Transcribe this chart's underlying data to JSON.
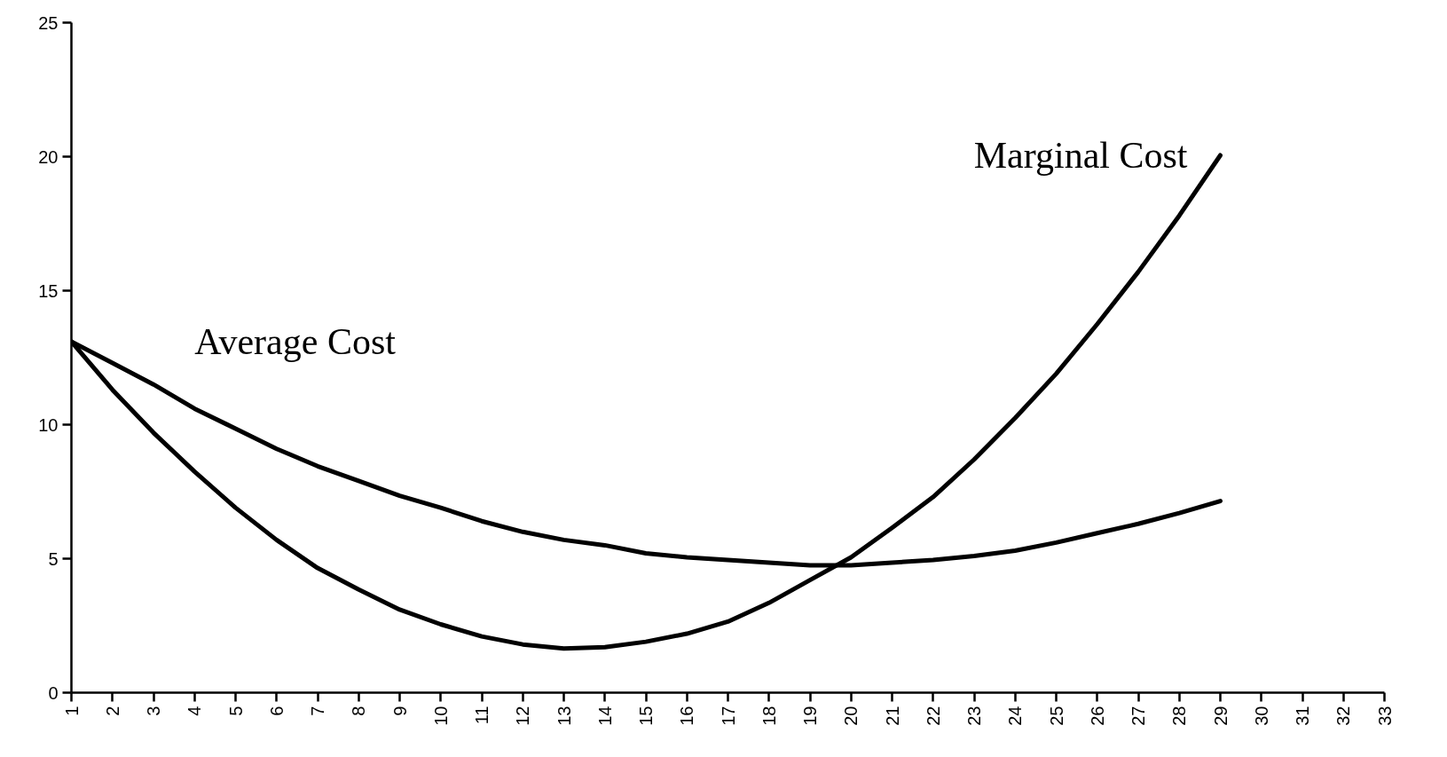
{
  "chart_data": {
    "type": "line",
    "x": [
      1,
      2,
      3,
      4,
      5,
      6,
      7,
      8,
      9,
      10,
      11,
      12,
      13,
      14,
      15,
      16,
      17,
      18,
      19,
      20,
      21,
      22,
      23,
      24,
      25,
      26,
      27,
      28,
      29
    ],
    "series": [
      {
        "name": "Average Cost",
        "color": "#000000",
        "values": [
          13.1,
          12.3,
          11.5,
          10.6,
          9.85,
          9.1,
          8.45,
          7.9,
          7.35,
          6.9,
          6.4,
          6.0,
          5.7,
          5.5,
          5.2,
          5.05,
          4.95,
          4.85,
          4.75,
          4.75,
          4.85,
          4.95,
          5.1,
          5.3,
          5.6,
          5.95,
          6.3,
          6.7,
          7.15
        ]
      },
      {
        "name": "Marginal Cost",
        "color": "#000000",
        "values": [
          13.1,
          11.3,
          9.7,
          8.25,
          6.9,
          5.7,
          4.65,
          3.85,
          3.1,
          2.55,
          2.1,
          1.8,
          1.65,
          1.7,
          1.9,
          2.2,
          2.65,
          3.35,
          4.2,
          5.05,
          6.15,
          7.3,
          8.7,
          10.25,
          11.9,
          13.75,
          15.7,
          17.8,
          20.05
        ]
      }
    ],
    "xlim": [
      1,
      33
    ],
    "xticks": [
      1,
      2,
      3,
      4,
      5,
      6,
      7,
      8,
      9,
      10,
      11,
      12,
      13,
      14,
      15,
      16,
      17,
      18,
      19,
      20,
      21,
      22,
      23,
      24,
      25,
      26,
      27,
      28,
      29,
      30,
      31,
      32,
      33
    ],
    "ylim": [
      0,
      25
    ],
    "yticks": [
      0,
      5,
      10,
      15,
      20,
      25
    ],
    "grid": false,
    "marker": "none",
    "line_style": "solid"
  }
}
